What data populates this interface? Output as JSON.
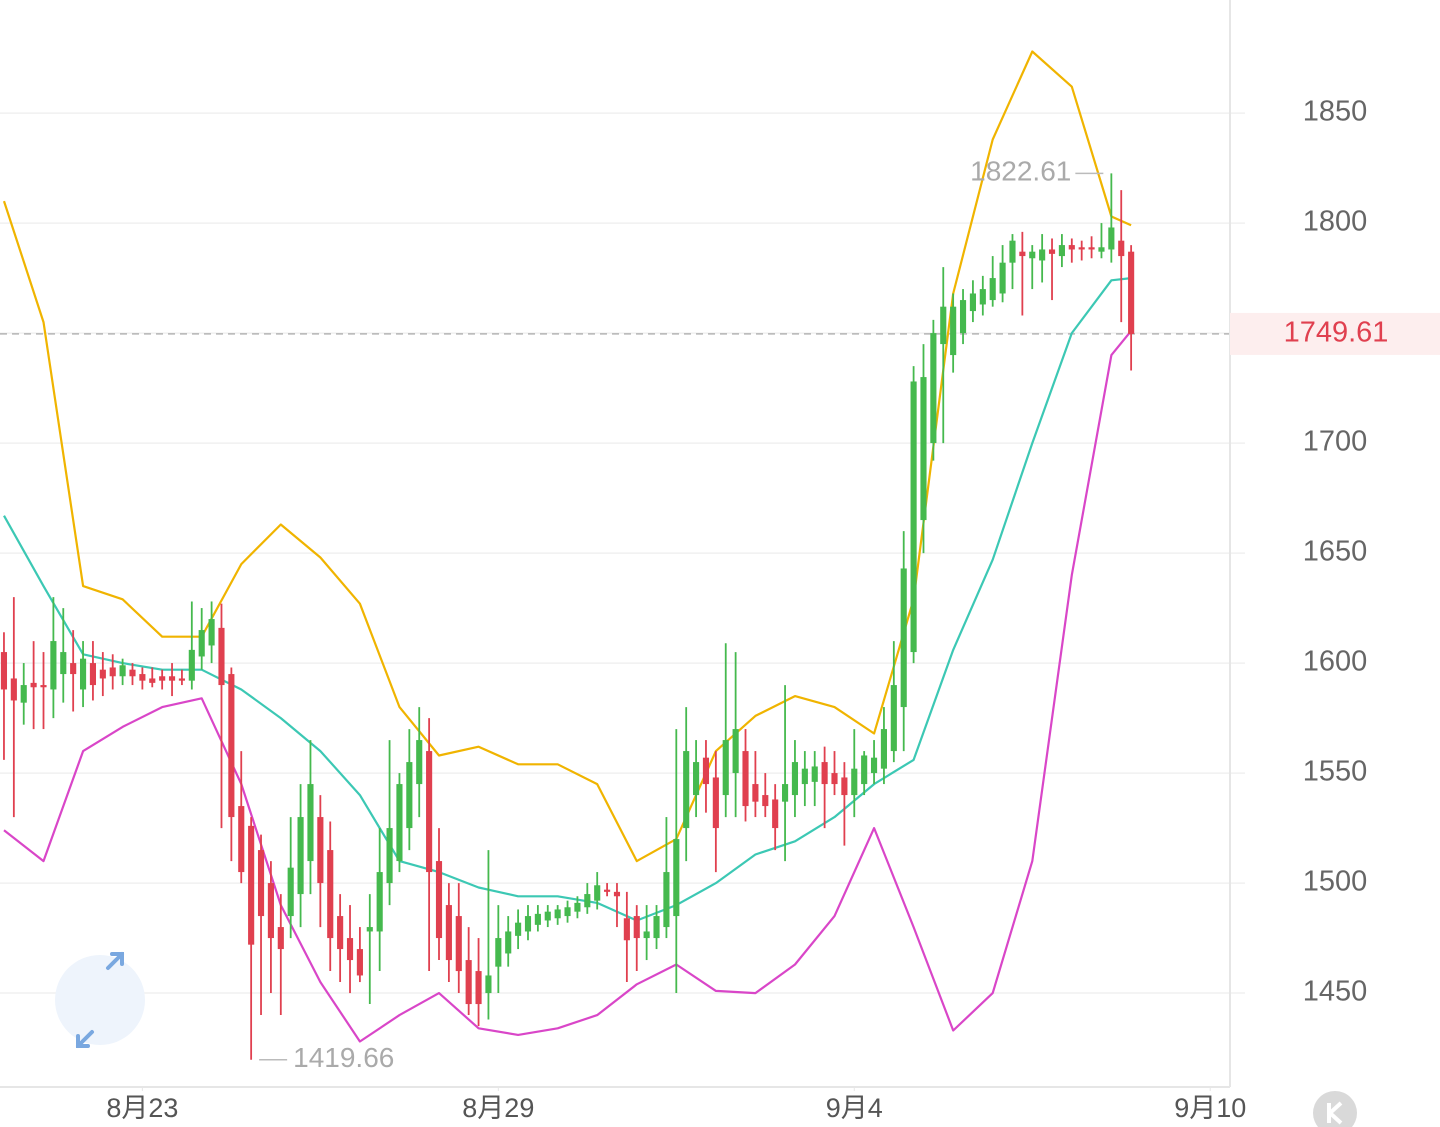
{
  "chart_data": {
    "type": "candlestick",
    "ylim": [
      1407.3,
      1901.4
    ],
    "yticks": [
      1450,
      1500,
      1550,
      1600,
      1650,
      1700,
      1750,
      1800,
      1850
    ],
    "xlim": [
      -0.4,
      124
    ],
    "xticks": [
      {
        "value": 14,
        "label": "8月23"
      },
      {
        "value": 50,
        "label": "8月29"
      },
      {
        "value": 86,
        "label": "9月4"
      },
      {
        "value": 122,
        "label": "9月10"
      }
    ],
    "up_color": "#45b94e",
    "down_color": "#e0404f",
    "grid": true,
    "candles": [
      [
        1605,
        1614,
        1556,
        1588
      ],
      [
        1593,
        1630,
        1530,
        1583
      ],
      [
        1582,
        1600,
        1572,
        1590
      ],
      [
        1591,
        1610,
        1570,
        1589
      ],
      [
        1590,
        1605,
        1570,
        1589
      ],
      [
        1588,
        1630,
        1575,
        1610
      ],
      [
        1595,
        1625,
        1582,
        1605
      ],
      [
        1600,
        1615,
        1578,
        1595
      ],
      [
        1588,
        1610,
        1580,
        1602
      ],
      [
        1600,
        1610,
        1583,
        1590
      ],
      [
        1597,
        1605,
        1585,
        1593
      ],
      [
        1598,
        1604,
        1588,
        1594
      ],
      [
        1594,
        1602,
        1590,
        1599
      ],
      [
        1597,
        1600,
        1590,
        1594
      ],
      [
        1595,
        1598,
        1588,
        1592
      ],
      [
        1593,
        1598,
        1589,
        1591
      ],
      [
        1594,
        1597,
        1588,
        1592
      ],
      [
        1594,
        1600,
        1585,
        1592
      ],
      [
        1593,
        1597,
        1590,
        1592
      ],
      [
        1592,
        1628,
        1588,
        1606
      ],
      [
        1603,
        1625,
        1597,
        1615
      ],
      [
        1608,
        1628,
        1600,
        1620
      ],
      [
        1616,
        1627,
        1525,
        1590
      ],
      [
        1595,
        1598,
        1510,
        1530
      ],
      [
        1535,
        1560,
        1500,
        1505
      ],
      [
        1526,
        1530,
        1419.66,
        1472
      ],
      [
        1515,
        1522,
        1440,
        1485
      ],
      [
        1500,
        1510,
        1450,
        1475
      ],
      [
        1480,
        1495,
        1440,
        1470
      ],
      [
        1485,
        1530,
        1475,
        1507
      ],
      [
        1495,
        1545,
        1480,
        1530
      ],
      [
        1510,
        1565,
        1495,
        1545
      ],
      [
        1530,
        1540,
        1480,
        1500
      ],
      [
        1515,
        1528,
        1460,
        1475
      ],
      [
        1485,
        1495,
        1455,
        1470
      ],
      [
        1475,
        1490,
        1450,
        1465
      ],
      [
        1470,
        1480,
        1455,
        1458
      ],
      [
        1478,
        1495,
        1445,
        1480
      ],
      [
        1478,
        1525,
        1460,
        1505
      ],
      [
        1500,
        1565,
        1490,
        1525
      ],
      [
        1510,
        1550,
        1505,
        1545
      ],
      [
        1525,
        1570,
        1515,
        1555
      ],
      [
        1545,
        1580,
        1530,
        1565
      ],
      [
        1560,
        1575,
        1460,
        1505
      ],
      [
        1510,
        1525,
        1465,
        1475
      ],
      [
        1490,
        1500,
        1455,
        1465
      ],
      [
        1485,
        1500,
        1450,
        1460
      ],
      [
        1465,
        1480,
        1440,
        1445
      ],
      [
        1460,
        1475,
        1435,
        1445
      ],
      [
        1450,
        1515,
        1438,
        1458
      ],
      [
        1462,
        1490,
        1450,
        1475
      ],
      [
        1468,
        1485,
        1462,
        1478
      ],
      [
        1476,
        1488,
        1470,
        1482
      ],
      [
        1478,
        1490,
        1474,
        1485
      ],
      [
        1481,
        1490,
        1478,
        1486
      ],
      [
        1483,
        1490,
        1480,
        1487
      ],
      [
        1484,
        1490,
        1481,
        1488
      ],
      [
        1485,
        1492,
        1482,
        1489
      ],
      [
        1487,
        1494,
        1484,
        1491
      ],
      [
        1489,
        1500,
        1486,
        1495
      ],
      [
        1492,
        1505,
        1488,
        1499
      ],
      [
        1497,
        1500,
        1494,
        1496
      ],
      [
        1496,
        1500,
        1480,
        1494
      ],
      [
        1484,
        1496,
        1455,
        1474
      ],
      [
        1485,
        1490,
        1460,
        1475
      ],
      [
        1475,
        1490,
        1465,
        1478
      ],
      [
        1475,
        1490,
        1470,
        1485
      ],
      [
        1480,
        1530,
        1475,
        1505
      ],
      [
        1485,
        1570,
        1450,
        1520
      ],
      [
        1525,
        1580,
        1510,
        1560
      ],
      [
        1540,
        1565,
        1530,
        1555
      ],
      [
        1557,
        1565,
        1532,
        1545
      ],
      [
        1548,
        1560,
        1505,
        1525
      ],
      [
        1540,
        1609,
        1530,
        1565
      ],
      [
        1550,
        1605,
        1530,
        1570
      ],
      [
        1560,
        1570,
        1528,
        1535
      ],
      [
        1545,
        1560,
        1530,
        1537
      ],
      [
        1540,
        1550,
        1530,
        1535
      ],
      [
        1538,
        1545,
        1515,
        1525
      ],
      [
        1537,
        1590,
        1510,
        1545
      ],
      [
        1540,
        1565,
        1530,
        1555
      ],
      [
        1545,
        1560,
        1535,
        1552
      ],
      [
        1546,
        1560,
        1535,
        1553
      ],
      [
        1555,
        1562,
        1525,
        1545
      ],
      [
        1550,
        1560,
        1540,
        1545
      ],
      [
        1548,
        1555,
        1517,
        1540
      ],
      [
        1540,
        1570,
        1530,
        1552
      ],
      [
        1545,
        1560,
        1540,
        1558
      ],
      [
        1550,
        1565,
        1545,
        1557
      ],
      [
        1552,
        1580,
        1545,
        1570
      ],
      [
        1560,
        1610,
        1555,
        1590
      ],
      [
        1580,
        1660,
        1560,
        1643
      ],
      [
        1605,
        1735,
        1600,
        1728
      ],
      [
        1665,
        1745,
        1650,
        1730
      ],
      [
        1700,
        1756,
        1692,
        1750
      ],
      [
        1745,
        1780,
        1700,
        1762
      ],
      [
        1740,
        1768,
        1732,
        1762
      ],
      [
        1750,
        1770,
        1745,
        1765
      ],
      [
        1760,
        1774,
        1755,
        1768
      ],
      [
        1763,
        1776,
        1758,
        1770
      ],
      [
        1765,
        1785,
        1762,
        1775
      ],
      [
        1768,
        1790,
        1764,
        1782
      ],
      [
        1782,
        1795,
        1770,
        1792
      ],
      [
        1787,
        1796,
        1758,
        1785
      ],
      [
        1784,
        1790,
        1770,
        1787
      ],
      [
        1783,
        1795,
        1773,
        1788
      ],
      [
        1788,
        1793,
        1765,
        1786
      ],
      [
        1785,
        1795,
        1780,
        1790
      ],
      [
        1790,
        1793,
        1782,
        1788
      ],
      [
        1789,
        1792,
        1783,
        1788
      ],
      [
        1789,
        1794,
        1784,
        1788
      ],
      [
        1787,
        1800,
        1784,
        1789
      ],
      [
        1788,
        1822.61,
        1782,
        1798
      ],
      [
        1792,
        1815,
        1755,
        1785
      ],
      [
        1787,
        1790,
        1733,
        1749.61
      ]
    ],
    "series": [
      {
        "color": "#f0b400",
        "x": [
          0,
          4,
          8,
          12,
          16,
          20,
          24,
          28,
          32,
          36,
          40,
          44,
          48,
          52,
          56,
          60,
          64,
          68,
          72,
          76,
          80,
          84,
          88,
          92,
          96,
          100,
          104,
          108,
          112,
          114
        ],
        "values": [
          1810,
          1755,
          1635,
          1629,
          1612,
          1612,
          1645,
          1663,
          1648,
          1627,
          1580,
          1558,
          1562,
          1554,
          1554,
          1545,
          1510,
          1520,
          1560,
          1576,
          1585,
          1580,
          1568,
          1629,
          1768,
          1838,
          1878,
          1862,
          1803,
          1799
        ]
      },
      {
        "color": "#3cc8b4",
        "x": [
          0,
          4,
          8,
          12,
          16,
          20,
          24,
          28,
          32,
          36,
          40,
          44,
          48,
          52,
          56,
          60,
          64,
          68,
          72,
          76,
          80,
          84,
          88,
          92,
          96,
          100,
          104,
          108,
          112,
          114
        ],
        "values": [
          1667,
          1635,
          1604,
          1600,
          1597,
          1597,
          1588,
          1575,
          1560,
          1540,
          1510,
          1505,
          1498,
          1494,
          1494,
          1491,
          1483,
          1490,
          1500,
          1513,
          1519,
          1530,
          1545,
          1556,
          1606,
          1647,
          1700,
          1750,
          1774,
          1775
        ]
      },
      {
        "color": "#d946c8",
        "x": [
          0,
          4,
          8,
          12,
          16,
          20,
          24,
          28,
          32,
          36,
          40,
          44,
          48,
          52,
          56,
          60,
          64,
          68,
          72,
          76,
          80,
          84,
          88,
          92,
          96,
          100,
          104,
          108,
          112,
          114
        ],
        "values": [
          1524,
          1510,
          1560,
          1571,
          1580,
          1584,
          1545,
          1490,
          1455,
          1428,
          1440,
          1450,
          1434,
          1431,
          1434,
          1440,
          1454,
          1463,
          1451,
          1450,
          1463,
          1485,
          1525,
          1480,
          1433,
          1450,
          1510,
          1640,
          1740,
          1751
        ]
      }
    ]
  }
}
